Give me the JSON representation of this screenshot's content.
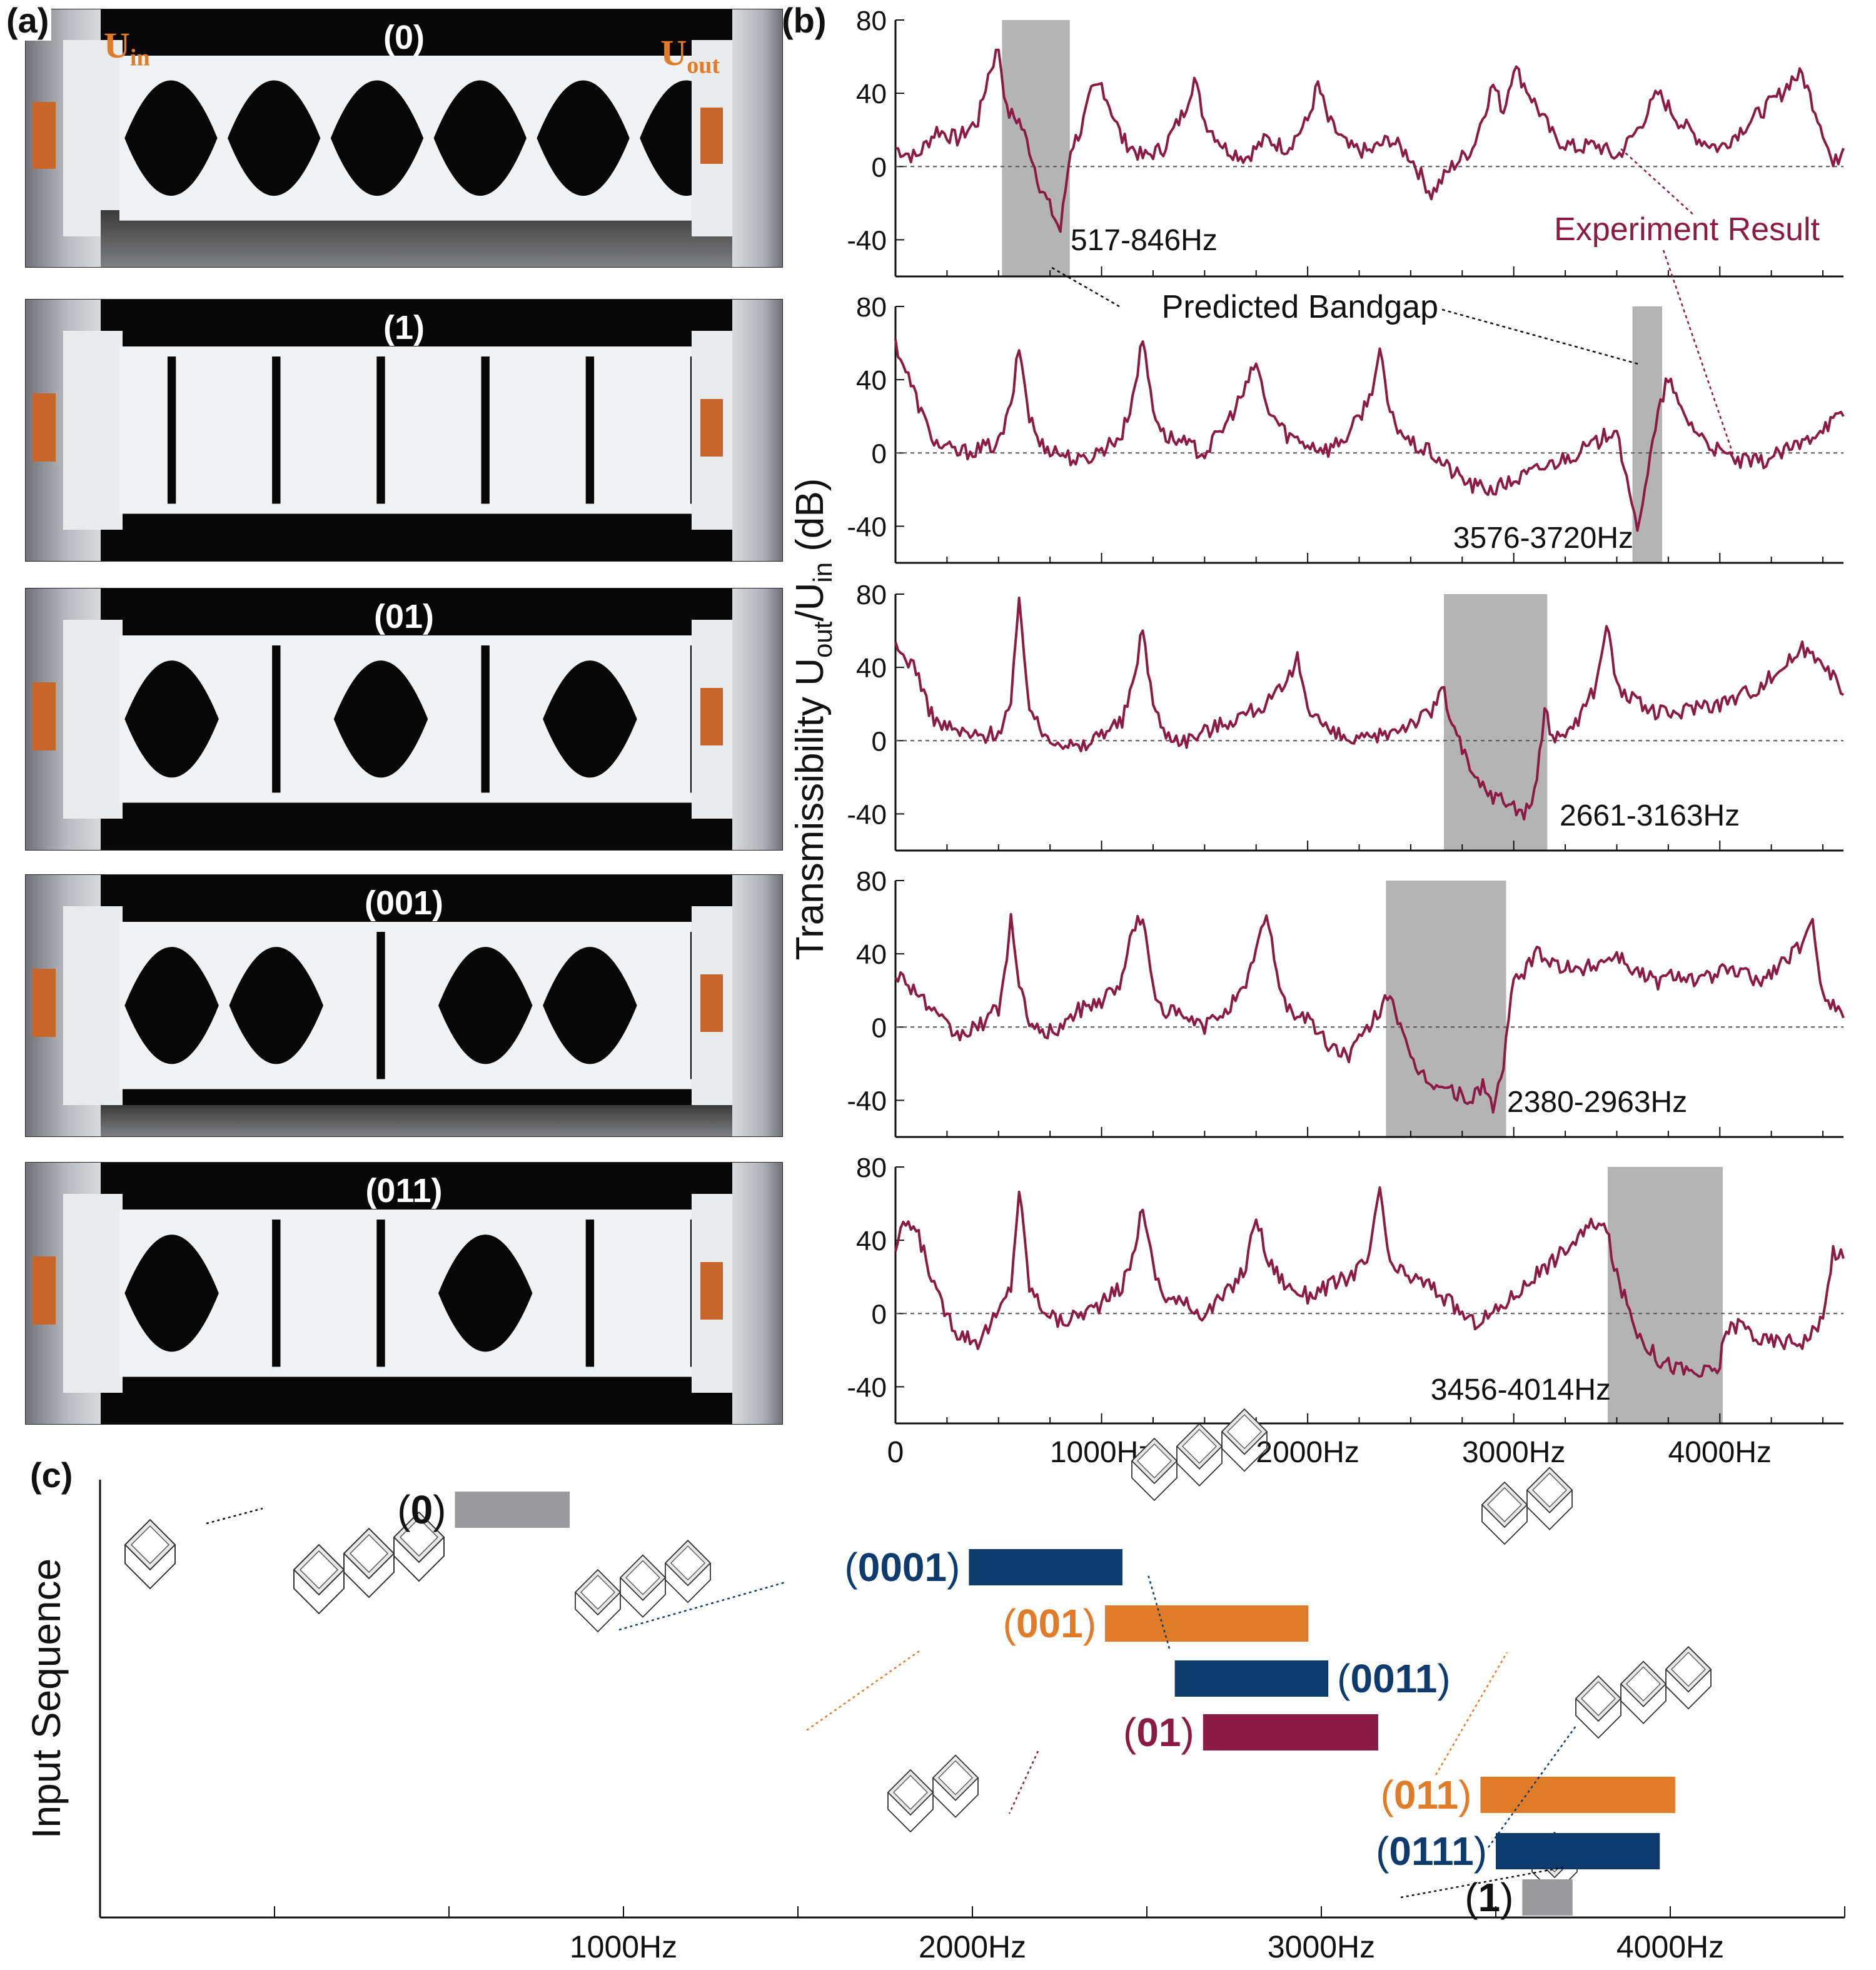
{
  "panels": {
    "a": "(a)",
    "b": "(b)",
    "c": "(c)"
  },
  "photos": {
    "labels": [
      "(0)",
      "(1)",
      "(01)",
      "(001)",
      "(011)"
    ],
    "uin_base": "U",
    "uin_sub": "in",
    "uout_base": "U",
    "uout_sub": "out"
  },
  "colors": {
    "curve": "#8b1a44",
    "band": "#b4b4b4",
    "orange": "#e07b28",
    "navy": "#0d3b6e",
    "maroon": "#8b1a44",
    "gray": "#9a9a9c",
    "text": "#111111"
  },
  "chart_data": [
    {
      "type": "line",
      "panel": "b",
      "ylabel": "Transmissibility Uout/Uin (dB)",
      "ylabel_main": "Transmissibility U",
      "ylabel_sub1": "out",
      "ylabel_mid": "/U",
      "ylabel_sub2": "in",
      "ylabel_tail": " (dB)",
      "xlim": [
        0,
        4600
      ],
      "ylim": [
        -60,
        80
      ],
      "yticks": [
        80,
        40,
        0,
        -40
      ],
      "xticks": [
        0,
        1000,
        2000,
        3000,
        4000
      ],
      "xticklabels": [
        "0",
        "1000Hz",
        "2000Hz",
        "3000Hz",
        "4000Hz"
      ],
      "annotations": {
        "experiment": "Experiment Result",
        "predicted": "Predicted Bandgap"
      },
      "subplots": [
        {
          "name": "(0)",
          "bandgap": [
            517,
            846
          ],
          "bandgap_label": "517-846Hz",
          "x": [
            0,
            100,
            200,
            300,
            400,
            450,
            500,
            540,
            600,
            650,
            700,
            760,
            800,
            850,
            900,
            950,
            1000,
            1100,
            1200,
            1300,
            1400,
            1450,
            1500,
            1600,
            1700,
            1800,
            1900,
            2000,
            2050,
            2100,
            2200,
            2300,
            2400,
            2500,
            2600,
            2700,
            2800,
            2900,
            2950,
            3000,
            3100,
            3200,
            3300,
            3400,
            3500,
            3600,
            3700,
            3800,
            3900,
            4000,
            4100,
            4200,
            4300,
            4350,
            4400,
            4500,
            4550,
            4600
          ],
          "y": [
            10,
            5,
            20,
            15,
            25,
            50,
            65,
            30,
            25,
            10,
            -10,
            -25,
            -35,
            10,
            20,
            40,
            45,
            15,
            5,
            10,
            30,
            48,
            25,
            10,
            5,
            15,
            10,
            25,
            45,
            25,
            10,
            8,
            15,
            5,
            -15,
            0,
            10,
            45,
            30,
            55,
            35,
            15,
            10,
            12,
            5,
            20,
            40,
            25,
            15,
            10,
            20,
            30,
            40,
            48,
            50,
            20,
            0,
            10
          ]
        },
        {
          "name": "(1)",
          "bandgap": [
            3576,
            3720
          ],
          "bandgap_label": "3576-3720Hz",
          "x": [
            0,
            50,
            100,
            150,
            200,
            300,
            400,
            500,
            560,
            600,
            650,
            700,
            800,
            900,
            1000,
            1100,
            1150,
            1200,
            1250,
            1300,
            1400,
            1500,
            1600,
            1700,
            1750,
            1800,
            1900,
            2000,
            2100,
            2200,
            2300,
            2350,
            2400,
            2500,
            2600,
            2700,
            2800,
            2900,
            3000,
            3100,
            3200,
            3300,
            3400,
            3500,
            3560,
            3600,
            3650,
            3700,
            3750,
            3800,
            3900,
            4000,
            4100,
            4200,
            4300,
            4400,
            4500,
            4600
          ],
          "y": [
            60,
            45,
            30,
            15,
            5,
            0,
            2,
            5,
            25,
            58,
            20,
            5,
            0,
            -5,
            2,
            10,
            30,
            62,
            25,
            10,
            5,
            0,
            15,
            35,
            50,
            25,
            10,
            5,
            2,
            10,
            30,
            55,
            20,
            5,
            0,
            -10,
            -18,
            -20,
            -15,
            -10,
            -5,
            0,
            5,
            15,
            -25,
            -40,
            -10,
            20,
            42,
            25,
            10,
            0,
            -5,
            -5,
            0,
            5,
            15,
            20
          ]
        },
        {
          "name": "(01)",
          "bandgap": [
            2661,
            3163
          ],
          "bandgap_label": "2661-3163Hz",
          "x": [
            0,
            50,
            100,
            150,
            200,
            300,
            400,
            500,
            560,
            600,
            650,
            700,
            800,
            900,
            1000,
            1100,
            1150,
            1200,
            1250,
            1300,
            1400,
            1500,
            1600,
            1700,
            1800,
            1900,
            1950,
            2000,
            2100,
            2200,
            2300,
            2400,
            2500,
            2600,
            2650,
            2700,
            2800,
            2900,
            3000,
            3050,
            3100,
            3150,
            3200,
            3250,
            3300,
            3400,
            3450,
            3500,
            3600,
            3700,
            3800,
            3900,
            4000,
            4100,
            4200,
            4300,
            4400,
            4500,
            4600
          ],
          "y": [
            50,
            45,
            40,
            20,
            10,
            5,
            2,
            5,
            20,
            75,
            20,
            5,
            0,
            -5,
            5,
            10,
            30,
            62,
            20,
            5,
            0,
            5,
            10,
            15,
            20,
            30,
            45,
            20,
            5,
            0,
            0,
            5,
            10,
            15,
            30,
            10,
            -20,
            -30,
            -35,
            -40,
            -30,
            15,
            0,
            5,
            10,
            30,
            65,
            30,
            20,
            15,
            15,
            20,
            20,
            25,
            30,
            40,
            50,
            45,
            25
          ]
        },
        {
          "name": "(001)",
          "bandgap": [
            2380,
            2963
          ],
          "bandgap_label": "2380-2963Hz",
          "x": [
            0,
            50,
            100,
            200,
            300,
            400,
            500,
            530,
            560,
            600,
            650,
            700,
            800,
            900,
            1000,
            1100,
            1150,
            1200,
            1250,
            1300,
            1400,
            1500,
            1600,
            1700,
            1750,
            1800,
            1850,
            1900,
            2000,
            2100,
            2200,
            2300,
            2350,
            2400,
            2450,
            2500,
            2600,
            2700,
            2800,
            2850,
            2900,
            2950,
            3000,
            3050,
            3100,
            3200,
            3300,
            3400,
            3500,
            3600,
            3700,
            3800,
            3900,
            4000,
            4100,
            4200,
            4300,
            4400,
            4450,
            4500,
            4600
          ],
          "y": [
            30,
            25,
            20,
            5,
            -5,
            0,
            10,
            30,
            60,
            20,
            5,
            -5,
            0,
            10,
            15,
            25,
            55,
            60,
            20,
            10,
            5,
            0,
            10,
            20,
            45,
            60,
            30,
            10,
            5,
            -10,
            -15,
            0,
            10,
            20,
            0,
            -20,
            -30,
            -35,
            -40,
            -30,
            -45,
            -20,
            25,
            30,
            40,
            35,
            30,
            35,
            40,
            30,
            25,
            30,
            25,
            30,
            30,
            25,
            35,
            45,
            55,
            20,
            5
          ]
        },
        {
          "name": "(011)",
          "bandgap": [
            3456,
            4014
          ],
          "bandgap_label": "3456-4014Hz",
          "x": [
            0,
            50,
            100,
            150,
            200,
            300,
            400,
            500,
            560,
            600,
            650,
            700,
            800,
            900,
            1000,
            1100,
            1150,
            1200,
            1250,
            1300,
            1400,
            1500,
            1600,
            1700,
            1750,
            1800,
            1900,
            2000,
            2100,
            2200,
            2300,
            2350,
            2400,
            2500,
            2600,
            2700,
            2800,
            2900,
            3000,
            3100,
            3200,
            3300,
            3400,
            3450,
            3500,
            3600,
            3700,
            3800,
            3900,
            4000,
            4020,
            4100,
            4200,
            4300,
            4400,
            4500,
            4550,
            4600
          ],
          "y": [
            35,
            50,
            45,
            30,
            10,
            -10,
            -15,
            0,
            15,
            68,
            15,
            5,
            -5,
            0,
            5,
            15,
            30,
            60,
            25,
            10,
            5,
            0,
            10,
            25,
            55,
            30,
            15,
            10,
            15,
            20,
            30,
            70,
            25,
            20,
            15,
            5,
            -5,
            0,
            10,
            20,
            30,
            40,
            50,
            45,
            20,
            -10,
            -25,
            -30,
            -33,
            -30,
            -10,
            -5,
            -15,
            -15,
            -15,
            -5,
            35,
            30
          ]
        }
      ]
    },
    {
      "type": "bar",
      "panel": "c",
      "ylabel": "Input Sequence",
      "xlim": [
        -500,
        4500
      ],
      "xticks": [
        1000,
        2000,
        3000,
        4000
      ],
      "xticklabels": [
        "1000Hz",
        "2000Hz",
        "3000Hz",
        "4000Hz"
      ],
      "bars": [
        {
          "label_open": "(",
          "label_mid": "0",
          "label_close": ")",
          "start": 517,
          "end": 846,
          "color": "gray",
          "label_side": "left"
        },
        {
          "label_open": "(",
          "label_mid": "0001",
          "label_close": ")",
          "start": 1990,
          "end": 2430,
          "color": "navy",
          "label_side": "left"
        },
        {
          "label_open": "(",
          "label_mid": "001",
          "label_close": ")",
          "start": 2380,
          "end": 2963,
          "color": "orange",
          "label_side": "left"
        },
        {
          "label_open": "(",
          "label_mid": "0011",
          "label_close": ")",
          "start": 2580,
          "end": 3020,
          "color": "navy",
          "label_side": "right"
        },
        {
          "label_open": "(",
          "label_mid": "01",
          "label_close": ")",
          "start": 2661,
          "end": 3163,
          "color": "maroon",
          "label_side": "left"
        },
        {
          "label_open": "(",
          "label_mid": "011",
          "label_close": ")",
          "start": 3456,
          "end": 4014,
          "color": "orange",
          "label_side": "left"
        },
        {
          "label_open": "(",
          "label_mid": "0111",
          "label_close": ")",
          "start": 3500,
          "end": 3970,
          "color": "navy",
          "label_side": "left"
        },
        {
          "label_open": "(",
          "label_mid": "1",
          "label_close": ")",
          "start": 3576,
          "end": 3720,
          "color": "gray",
          "label_side": "left"
        }
      ]
    }
  ]
}
